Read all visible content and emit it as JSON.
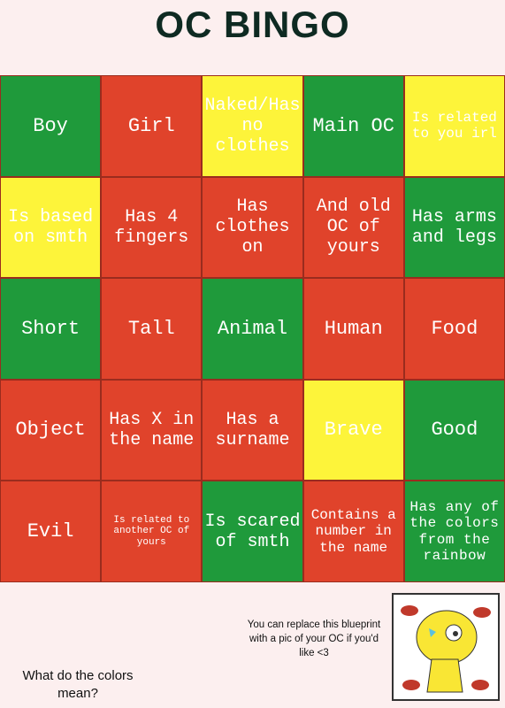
{
  "title": "OC BINGO",
  "grid": {
    "rows": [
      [
        {
          "text": "Boy",
          "color": "#1f9a3b"
        },
        {
          "text": "Girl",
          "color": "#e0432b"
        },
        {
          "text": "Naked/Has no clothes",
          "color": "#fdf43a"
        },
        {
          "text": "Main OC",
          "color": "#1f9a3b"
        },
        {
          "text": "Is related to you irl",
          "color": "#fdf43a"
        }
      ],
      [
        {
          "text": "Is based on smth",
          "color": "#fdf43a"
        },
        {
          "text": "Has 4 fingers",
          "color": "#e0432b"
        },
        {
          "text": "Has clothes on",
          "color": "#e0432b"
        },
        {
          "text": "And old OC of yours",
          "color": "#e0432b"
        },
        {
          "text": "Has arms and legs",
          "color": "#1f9a3b"
        }
      ],
      [
        {
          "text": "Short",
          "color": "#1f9a3b"
        },
        {
          "text": "Tall",
          "color": "#e0432b"
        },
        {
          "text": "Animal",
          "color": "#1f9a3b"
        },
        {
          "text": "Human",
          "color": "#e0432b"
        },
        {
          "text": "Food",
          "color": "#e0432b"
        }
      ],
      [
        {
          "text": "Object",
          "color": "#e0432b"
        },
        {
          "text": "Has X in the name",
          "color": "#e0432b"
        },
        {
          "text": "Has a surname",
          "color": "#e0432b"
        },
        {
          "text": "Brave",
          "color": "#fdf43a"
        },
        {
          "text": "Good",
          "color": "#1f9a3b"
        }
      ],
      [
        {
          "text": "Evil",
          "color": "#e0432b"
        },
        {
          "text": "Is related to another OC of yours",
          "color": "#e0432b"
        },
        {
          "text": "Is scared of smth",
          "color": "#1f9a3b"
        },
        {
          "text": "Contains a number in the name",
          "color": "#e0432b"
        },
        {
          "text": "Has any of the colors from the rainbow",
          "color": "#1f9a3b"
        }
      ]
    ]
  },
  "note": "You can replace this blueprint with a pic of your OC if you'd like <3",
  "question": "What do the colors mean?"
}
